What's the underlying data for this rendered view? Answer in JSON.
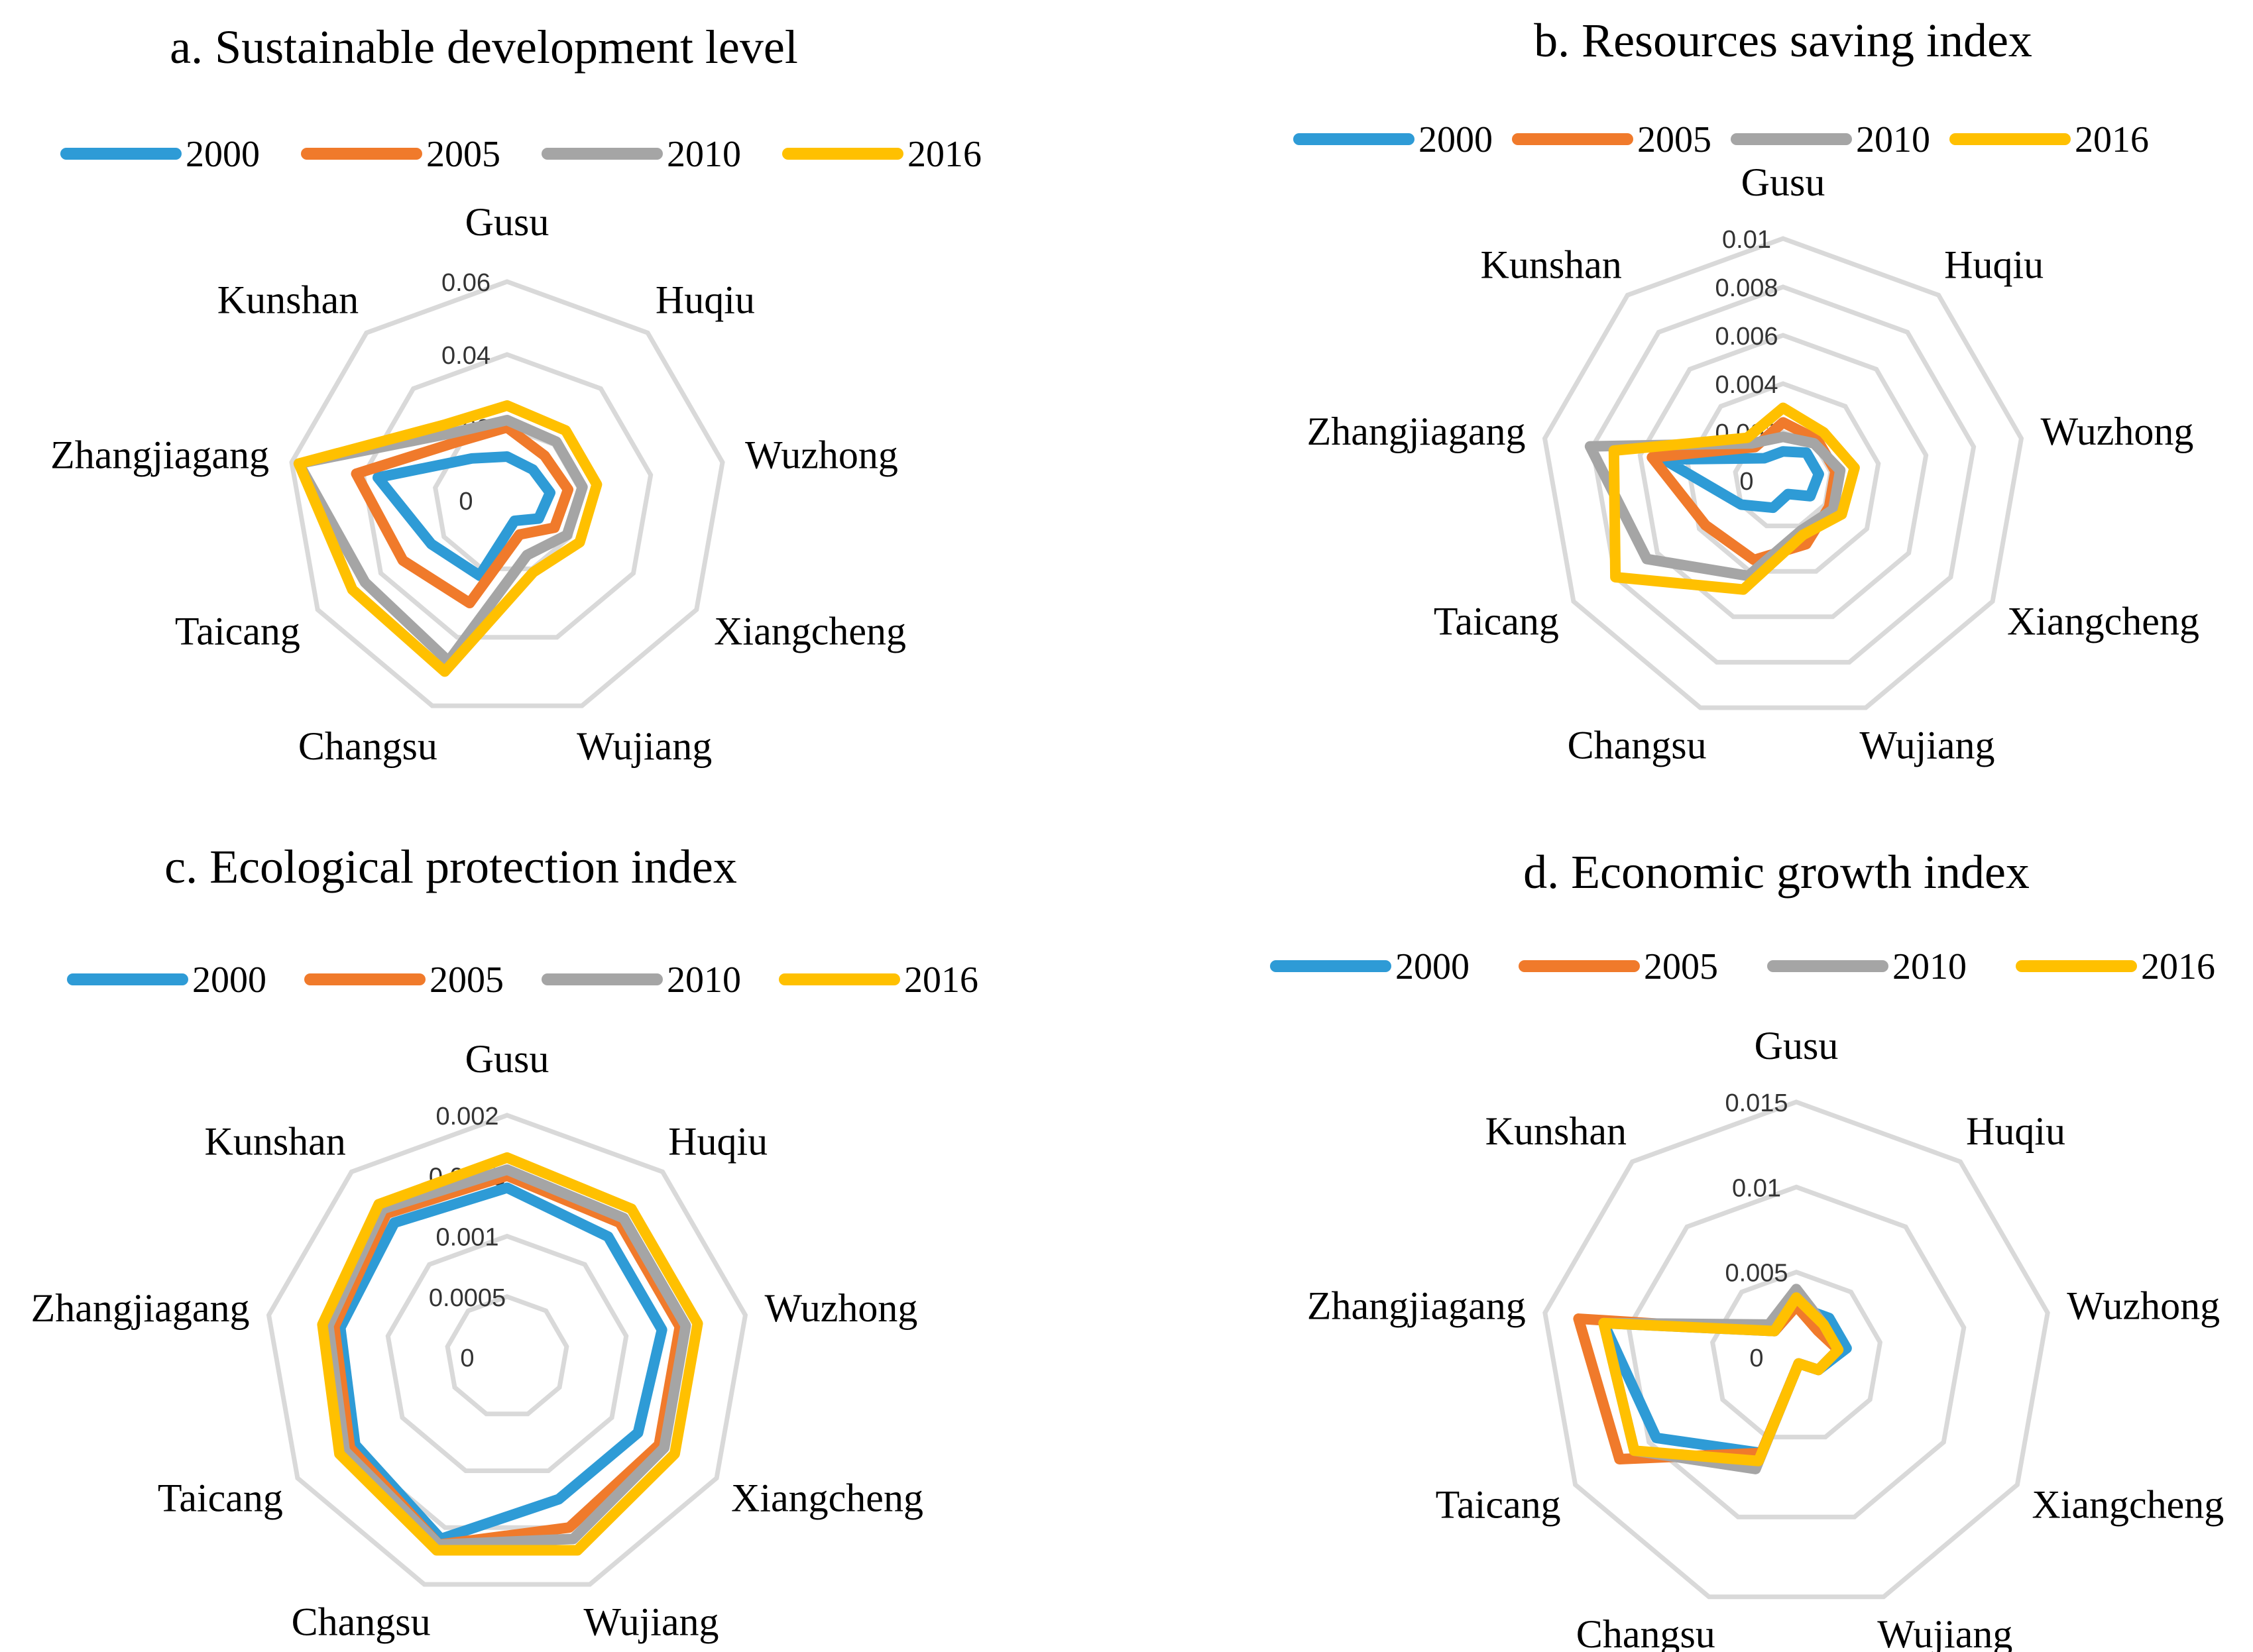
{
  "colors": {
    "2000": "#2E9BD6",
    "2005": "#F07A2B",
    "2010": "#A5A5A5",
    "2016": "#FFC000",
    "grid": "#D9D9D9"
  },
  "chart_data": [
    {
      "type": "radar",
      "title": "a. Sustainable development level",
      "axes": [
        "Gusu",
        "Huqiu",
        "Wuzhong",
        "Xiangcheng",
        "Wujiang",
        "Changsu",
        "Taicang",
        "Zhangjiagang",
        "Kunshan"
      ],
      "ticks": [
        "0",
        "0.02",
        "0.04",
        "0.06"
      ],
      "range": [
        0,
        0.06
      ],
      "legend": [
        "2000",
        "2005",
        "2010",
        "2016"
      ],
      "series": [
        {
          "name": "2000",
          "values": [
            0.012,
            0.011,
            0.012,
            0.01,
            0.006,
            0.022,
            0.024,
            0.036,
            0.015
          ]
        },
        {
          "name": "2005",
          "values": [
            0.02,
            0.016,
            0.017,
            0.015,
            0.01,
            0.03,
            0.033,
            0.042,
            0.021
          ]
        },
        {
          "name": "2010",
          "values": [
            0.022,
            0.021,
            0.021,
            0.019,
            0.016,
            0.047,
            0.045,
            0.058,
            0.024
          ]
        },
        {
          "name": "2016",
          "values": [
            0.026,
            0.025,
            0.025,
            0.023,
            0.021,
            0.05,
            0.049,
            0.058,
            0.027
          ]
        }
      ]
    },
    {
      "type": "radar",
      "title": "b. Resources saving index",
      "axes": [
        "Gusu",
        "Huqiu",
        "Wuzhong",
        "Xiangcheng",
        "Wujiang",
        "Changsu",
        "Taicang",
        "Zhangjiagang",
        "Kunshan"
      ],
      "ticks": [
        "0",
        "0.002",
        "0.004",
        "0.006",
        "0.008",
        "0.01"
      ],
      "range": [
        0,
        0.01
      ],
      "legend": [
        "2000",
        "2005",
        "2010",
        "2016"
      ],
      "series": [
        {
          "name": "2000",
          "values": [
            0.0012,
            0.0015,
            0.0015,
            0.0013,
            0.0006,
            0.0012,
            0.002,
            0.005,
            0.0012
          ]
        },
        {
          "name": "2005",
          "values": [
            0.0024,
            0.0022,
            0.0022,
            0.0022,
            0.0028,
            0.0035,
            0.0037,
            0.0055,
            0.0018
          ]
        },
        {
          "name": "2010",
          "values": [
            0.0018,
            0.002,
            0.0024,
            0.0024,
            0.0022,
            0.0042,
            0.0065,
            0.0081,
            0.002
          ]
        },
        {
          "name": "2016",
          "values": [
            0.003,
            0.0026,
            0.003,
            0.0028,
            0.0024,
            0.0048,
            0.008,
            0.0071,
            0.0023
          ]
        }
      ]
    },
    {
      "type": "radar",
      "title": "c. Ecological protection index",
      "axes": [
        "Gusu",
        "Huqiu",
        "Wuzhong",
        "Xiangcheng",
        "Wujiang",
        "Changsu",
        "Taicang",
        "Zhangjiagang",
        "Kunshan"
      ],
      "ticks": [
        "0",
        "0.0005",
        "0.001",
        "0.0015",
        "0.002"
      ],
      "range": [
        0,
        0.002
      ],
      "legend": [
        "2000",
        "2005",
        "2010",
        "2016"
      ],
      "series": [
        {
          "name": "2000",
          "values": [
            0.0014,
            0.0013,
            0.0013,
            0.00125,
            0.00125,
            0.0016,
            0.00145,
            0.0014,
            0.00145
          ]
        },
        {
          "name": "2005",
          "values": [
            0.0015,
            0.00145,
            0.00145,
            0.00145,
            0.0015,
            0.00165,
            0.0015,
            0.00145,
            0.00155
          ]
        },
        {
          "name": "2010",
          "values": [
            0.00155,
            0.0015,
            0.0015,
            0.0015,
            0.0016,
            0.00165,
            0.00155,
            0.0015,
            0.0016
          ]
        },
        {
          "name": "2016",
          "values": [
            0.00165,
            0.0016,
            0.0016,
            0.0016,
            0.0017,
            0.0017,
            0.0016,
            0.00155,
            0.00165
          ]
        }
      ]
    },
    {
      "type": "radar",
      "title": "d. Economic growth index",
      "axes": [
        "Gusu",
        "Huqiu",
        "Wuzhong",
        "Xiangcheng",
        "Wujiang",
        "Changsu",
        "Taicang",
        "Zhangjiagang",
        "Kunshan"
      ],
      "ticks": [
        "0",
        "0.005",
        "0.01",
        "0.015"
      ],
      "range": [
        0,
        0.015
      ],
      "legend": [
        "2000",
        "2005",
        "2010",
        "2016"
      ],
      "series": [
        {
          "name": "2000",
          "values": [
            0.003,
            0.003,
            0.003,
            0.0015,
            0.0004,
            0.006,
            0.0095,
            0.0115,
            0.002
          ]
        },
        {
          "name": "2005",
          "values": [
            0.003,
            0.002,
            0.0025,
            0.0015,
            0.0004,
            0.006,
            0.012,
            0.013,
            0.002
          ]
        },
        {
          "name": "2010",
          "values": [
            0.004,
            0.0025,
            0.0025,
            0.0015,
            0.0004,
            0.007,
            0.011,
            0.0115,
            0.0025
          ]
        },
        {
          "name": "2016",
          "values": [
            0.0035,
            0.0025,
            0.0025,
            0.0015,
            0.0004,
            0.0065,
            0.011,
            0.0115,
            0.002
          ]
        }
      ]
    }
  ]
}
